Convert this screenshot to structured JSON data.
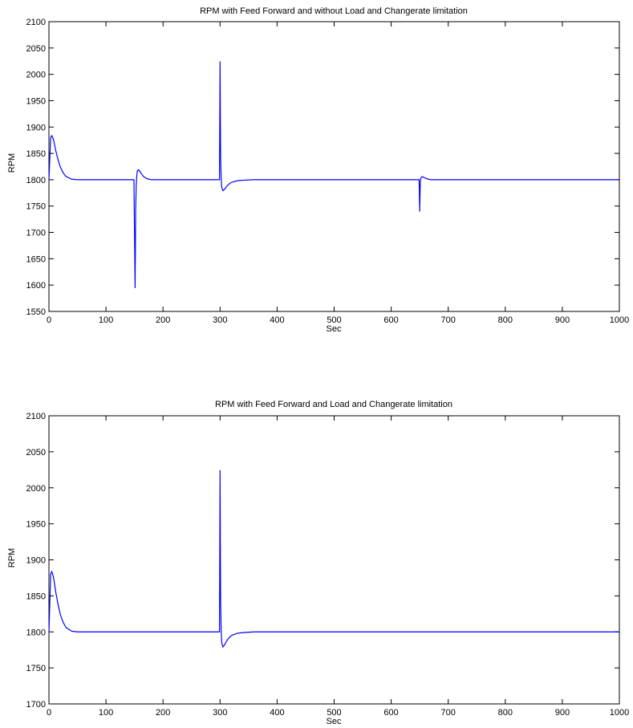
{
  "chart_data": [
    {
      "type": "line",
      "title": "RPM with Feed Forward and without Load and Changerate limitation",
      "xlabel": "Sec",
      "ylabel": "RPM",
      "xlim": [
        0,
        1000
      ],
      "ylim": [
        1550,
        2100
      ],
      "xticks": [
        0,
        100,
        200,
        300,
        400,
        500,
        600,
        700,
        800,
        900,
        1000
      ],
      "yticks": [
        1550,
        1600,
        1650,
        1700,
        1750,
        1800,
        1850,
        1900,
        1950,
        2000,
        2050,
        2100
      ],
      "grid": false,
      "line_color": "#0000ff",
      "series": [
        {
          "x": [
            0,
            3,
            5,
            8,
            12,
            16,
            20,
            25,
            30,
            40,
            50,
            60,
            80,
            100,
            120,
            140,
            149,
            150,
            151,
            151.5,
            152,
            153,
            154,
            155,
            157,
            160,
            163,
            166,
            170,
            175,
            180,
            190,
            200,
            250,
            299,
            300,
            300.5,
            301,
            302,
            303,
            305,
            308,
            312,
            316,
            320,
            330,
            340,
            360,
            400,
            500,
            600,
            649,
            650,
            650.5,
            651,
            652,
            654,
            656,
            658,
            660,
            665,
            670,
            680,
            700,
            800,
            900,
            1000
          ],
          "y": [
            1800,
            1880,
            1884,
            1876,
            1855,
            1838,
            1824,
            1813,
            1806,
            1801,
            1800,
            1800,
            1800,
            1800,
            1800,
            1800,
            1800,
            1700,
            1595,
            1660,
            1740,
            1790,
            1808,
            1817,
            1819,
            1815,
            1810,
            1806,
            1803,
            1801,
            1800,
            1800,
            1800,
            1800,
            1800,
            2024,
            1920,
            1840,
            1800,
            1785,
            1779,
            1782,
            1788,
            1792,
            1795,
            1798,
            1799,
            1800,
            1800,
            1800,
            1800,
            1800,
            1740,
            1770,
            1795,
            1803,
            1806,
            1805,
            1804,
            1803,
            1801,
            1800,
            1800,
            1800,
            1800,
            1800,
            1800
          ]
        }
      ]
    },
    {
      "type": "line",
      "title": "RPM with Feed Forward and Load and Changerate limitation",
      "xlabel": "Sec",
      "ylabel": "RPM",
      "xlim": [
        0,
        1000
      ],
      "ylim": [
        1700,
        2100
      ],
      "xticks": [
        0,
        100,
        200,
        300,
        400,
        500,
        600,
        700,
        800,
        900,
        1000
      ],
      "yticks": [
        1700,
        1750,
        1800,
        1850,
        1900,
        1950,
        2000,
        2050,
        2100
      ],
      "grid": false,
      "line_color": "#0000ff",
      "series": [
        {
          "x": [
            0,
            3,
            5,
            8,
            12,
            16,
            20,
            25,
            30,
            40,
            50,
            60,
            80,
            100,
            150,
            200,
            250,
            299,
            300,
            300.5,
            301,
            302,
            303,
            305,
            308,
            312,
            316,
            320,
            330,
            340,
            360,
            400,
            500,
            600,
            700,
            800,
            900,
            1000
          ],
          "y": [
            1800,
            1880,
            1884,
            1876,
            1855,
            1838,
            1824,
            1813,
            1806,
            1801,
            1800,
            1800,
            1800,
            1800,
            1800,
            1800,
            1800,
            1800,
            2024,
            1920,
            1840,
            1800,
            1785,
            1779,
            1782,
            1788,
            1792,
            1795,
            1798,
            1799,
            1800,
            1800,
            1800,
            1800,
            1800,
            1800,
            1800,
            1800
          ]
        }
      ]
    }
  ]
}
